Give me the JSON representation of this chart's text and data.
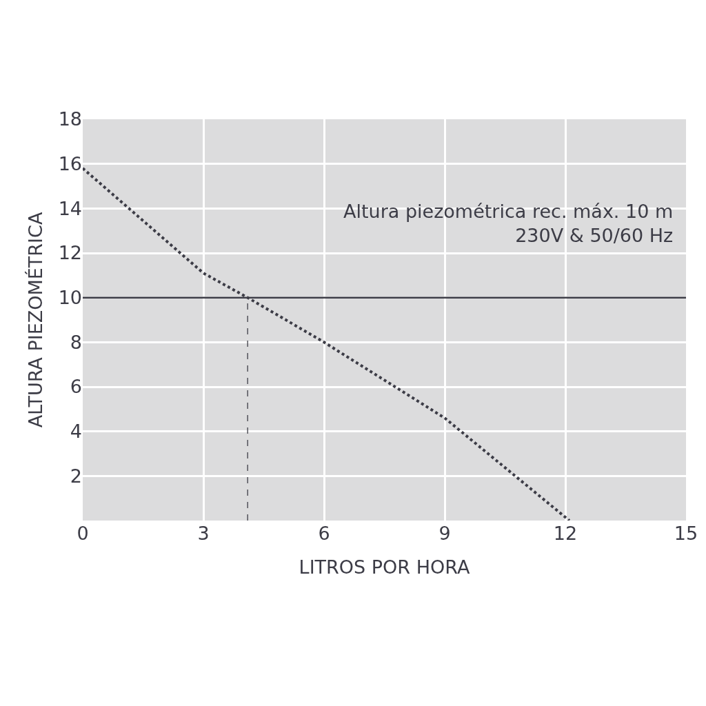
{
  "chart_data": {
    "type": "line",
    "xlabel": "LITROS POR HORA",
    "ylabel": "ALTURA PIEZOMÉTRICA",
    "series": [
      {
        "color": "#3c3c46",
        "line_style": "dotted",
        "x": [
          0,
          3,
          4.1,
          6,
          9,
          12.1
        ],
        "values": [
          15.8,
          11.1,
          10,
          8,
          4.6,
          0
        ]
      },
      {
        "color": "#3c3c46",
        "line_style": "dashed",
        "x": [
          4.1,
          4.1
        ],
        "values": [
          0,
          10
        ]
      }
    ],
    "ref_lines": [
      {
        "axis": "y",
        "value": 10,
        "color": "#3c3c46",
        "line_style": "solid"
      }
    ],
    "annotations": [
      "Altura piezométrica rec. máx. 10 m",
      "230V & 50/60 Hz"
    ],
    "xlim": [
      0,
      15
    ],
    "xticks": [
      0,
      3,
      6,
      9,
      12,
      15
    ],
    "ylim": [
      0,
      18
    ],
    "yticks": [
      {
        "value": 0,
        "label": null
      },
      2,
      4,
      6,
      8,
      10,
      12,
      14,
      16,
      18
    ],
    "grid": true,
    "marker": "none"
  }
}
